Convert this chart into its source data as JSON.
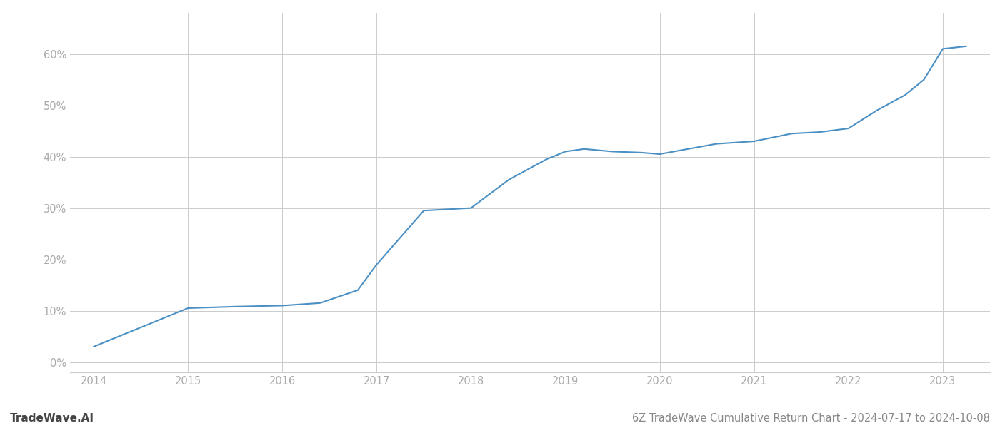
{
  "x_values": [
    2014.0,
    2014.6,
    2015.0,
    2015.5,
    2016.0,
    2016.4,
    2016.8,
    2017.0,
    2017.5,
    2018.0,
    2018.4,
    2018.8,
    2019.0,
    2019.2,
    2019.5,
    2019.8,
    2020.0,
    2020.3,
    2020.6,
    2021.0,
    2021.4,
    2021.7,
    2022.0,
    2022.3,
    2022.6,
    2022.8,
    2023.0,
    2023.25
  ],
  "y_values": [
    3.0,
    7.5,
    10.5,
    10.8,
    11.0,
    11.5,
    14.0,
    19.0,
    29.5,
    30.0,
    35.5,
    39.5,
    41.0,
    41.5,
    41.0,
    40.8,
    40.5,
    41.5,
    42.5,
    43.0,
    44.5,
    44.8,
    45.5,
    49.0,
    52.0,
    55.0,
    61.0,
    61.5
  ],
  "line_color": "#4a90c4",
  "line_width": 1.5,
  "title": "6Z TradeWave Cumulative Return Chart - 2024-07-17 to 2024-10-08",
  "watermark_text": "TradeWave.AI",
  "x_tick_labels": [
    "2014",
    "2015",
    "2016",
    "2017",
    "2018",
    "2019",
    "2020",
    "2021",
    "2022",
    "2023"
  ],
  "x_tick_positions": [
    2014,
    2015,
    2016,
    2017,
    2018,
    2019,
    2020,
    2021,
    2022,
    2023
  ],
  "y_ticks": [
    0,
    10,
    20,
    30,
    40,
    50,
    60
  ],
  "y_labels": [
    "0%",
    "10%",
    "20%",
    "30%",
    "40%",
    "50%",
    "60%"
  ],
  "xlim": [
    2013.75,
    2023.5
  ],
  "ylim": [
    -2,
    68
  ],
  "background_color": "#ffffff",
  "grid_color": "#cccccc",
  "tick_label_color": "#aaaaaa",
  "title_color": "#888888",
  "watermark_color": "#444444",
  "title_fontsize": 10.5,
  "watermark_fontsize": 11,
  "tick_fontsize": 10.5
}
